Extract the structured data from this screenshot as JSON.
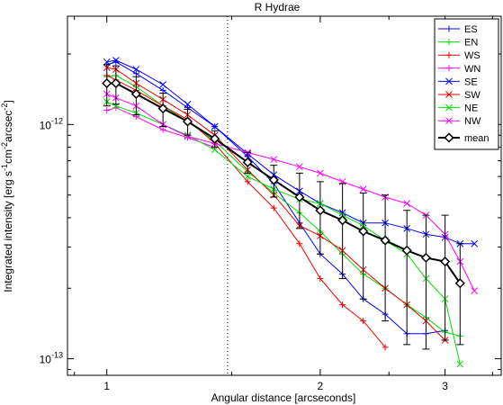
{
  "chart_data": {
    "type": "line",
    "title": "R Hydrae",
    "xlabel": "Angular distance [arcseconds]",
    "ylabel_main": "Integrated intensity [erg s",
    "ylabel_sup1": "-1",
    "ylabel_mid1": "cm",
    "ylabel_sup2": "-2",
    "ylabel_mid2": "arcsec",
    "ylabel_sup3": "-2",
    "ylabel_end": "]",
    "x_scale": "log",
    "y_scale": "log",
    "xlim": [
      0.88,
      3.6
    ],
    "ylim": [
      8.5e-14,
      2.9e-12
    ],
    "x_ticks": [
      {
        "value": 1,
        "label": "1"
      },
      {
        "value": 2,
        "label": "2"
      },
      {
        "value": 3,
        "label": "3"
      }
    ],
    "y_ticks": [
      {
        "value": 1e-13,
        "base": "10",
        "exp": "-13"
      },
      {
        "value": 1e-12,
        "base": "10",
        "exp": "-12"
      }
    ],
    "vline": {
      "x": 1.48,
      "style": "dotted"
    },
    "legend_position": "top-right",
    "series": [
      {
        "name": "ES",
        "color": "#0000ff",
        "marker": "plus",
        "x": [
          1.0,
          1.03,
          1.1,
          1.2,
          1.3,
          1.42,
          1.58,
          1.72,
          1.87,
          2.0,
          2.15,
          2.3,
          2.47,
          2.65,
          2.82,
          3.0
        ],
        "y": [
          1.8e-12,
          1.85e-12,
          1.65e-12,
          1.4e-12,
          1.18e-12,
          9.8e-13,
          7.3e-13,
          5.6e-13,
          3.8e-13,
          2.8e-13,
          2.3e-13,
          1.8e-13,
          1.55e-13,
          1.28e-13,
          1.28e-13,
          1.32e-13
        ]
      },
      {
        "name": "EN",
        "color": "#00dd00",
        "marker": "plus",
        "x": [
          1.0,
          1.03,
          1.1,
          1.2,
          1.3,
          1.42,
          1.58,
          1.72,
          1.87,
          2.0,
          2.15,
          2.3,
          2.47,
          2.65,
          2.82,
          3.0,
          3.15
        ],
        "y": [
          1.6e-12,
          1.62e-12,
          1.45e-12,
          1.2e-12,
          1.03e-12,
          8.5e-13,
          6.3e-13,
          5.1e-13,
          4.2e-13,
          3.5e-13,
          2.8e-13,
          2.3e-13,
          2e-13,
          1.7e-13,
          1.5e-13,
          1.3e-13,
          1.25e-13
        ]
      },
      {
        "name": "WS",
        "color": "#ee0000",
        "marker": "plus",
        "x": [
          1.0,
          1.03,
          1.1,
          1.2,
          1.3,
          1.42,
          1.58,
          1.72,
          1.87,
          2.0,
          2.15,
          2.3,
          2.47
        ],
        "y": [
          1.62e-12,
          1.55e-12,
          1.4e-12,
          1.2e-12,
          1.05e-12,
          8.3e-13,
          5.7e-13,
          4.4e-13,
          3.1e-13,
          2.2e-13,
          1.7e-13,
          1.45e-13,
          1.12e-13
        ]
      },
      {
        "name": "WN",
        "color": "#ff00ff",
        "marker": "plus",
        "x": [
          1.0,
          1.03,
          1.1,
          1.2,
          1.3,
          1.42
        ],
        "y": [
          1.15e-12,
          1.18e-12,
          1.08e-12,
          9.5e-13,
          8.8e-13,
          8e-13
        ]
      },
      {
        "name": "SE",
        "color": "#0000ff",
        "marker": "x",
        "x": [
          1.0,
          1.03,
          1.1,
          1.2,
          1.3,
          1.42,
          1.58,
          1.72,
          1.87,
          2.0,
          2.15,
          2.3,
          2.47,
          2.65,
          2.82,
          3.0,
          3.15,
          3.3
        ],
        "y": [
          1.85e-12,
          1.88e-12,
          1.72e-12,
          1.48e-12,
          1.22e-12,
          9.8e-13,
          7.5e-13,
          6.1e-13,
          5.2e-13,
          4.6e-13,
          4.2e-13,
          3.8e-13,
          3.8e-13,
          3.6e-13,
          3.4e-13,
          3.3e-13,
          3.1e-13,
          3.1e-13
        ]
      },
      {
        "name": "SW",
        "color": "#ee0000",
        "marker": "x",
        "x": [
          1.0,
          1.03,
          1.1,
          1.2,
          1.3,
          1.42,
          1.58,
          1.72,
          1.87,
          2.0,
          2.15,
          2.3,
          2.47,
          2.65,
          2.82,
          3.0
        ],
        "y": [
          1.75e-12,
          1.72e-12,
          1.5e-12,
          1.28e-12,
          1.1e-12,
          9e-13,
          6.4e-13,
          5e-13,
          3.7e-13,
          3.35e-13,
          2.9e-13,
          2.4e-13,
          2e-13,
          1.7e-13,
          1.45e-13,
          1.2e-13
        ]
      },
      {
        "name": "NE",
        "color": "#00dd00",
        "marker": "x",
        "x": [
          1.0,
          1.03,
          1.1,
          1.2,
          1.3,
          1.42,
          1.58,
          1.72,
          1.87,
          2.0,
          2.15,
          2.3,
          2.47,
          2.65,
          2.82,
          3.0,
          3.15
        ],
        "y": [
          1.25e-12,
          1.2e-12,
          1.12e-12,
          1e-12,
          9e-13,
          7.8e-13,
          6e-13,
          5.3e-13,
          4.8e-13,
          4.6e-13,
          4.1e-13,
          3.7e-13,
          3.2e-13,
          2.8e-13,
          2.2e-13,
          1.8e-13,
          9.5e-14
        ]
      },
      {
        "name": "NW",
        "color": "#ff00ff",
        "marker": "x",
        "x": [
          1.0,
          1.03,
          1.1,
          1.2,
          1.3,
          1.42,
          1.58,
          1.72,
          1.87,
          2.0,
          2.15,
          2.3,
          2.47,
          2.65,
          2.82,
          3.0,
          3.15,
          3.3
        ],
        "y": [
          1.35e-12,
          1.3e-12,
          1.2e-12,
          1e-12,
          8.9e-13,
          8.3e-13,
          7.6e-13,
          7.1e-13,
          6.6e-13,
          6.2e-13,
          5.7e-13,
          5.3e-13,
          4.9e-13,
          4.6e-13,
          4.1e-13,
          3.4e-13,
          2.6e-13,
          1.95e-13
        ]
      },
      {
        "name": "mean",
        "color": "#000000",
        "marker": "diamond",
        "width": 2,
        "x": [
          1.0,
          1.03,
          1.1,
          1.2,
          1.3,
          1.42,
          1.58,
          1.72,
          1.87,
          2.0,
          2.15,
          2.3,
          2.47,
          2.65,
          2.82,
          3.0,
          3.15
        ],
        "y": [
          1.5e-12,
          1.5e-12,
          1.35e-12,
          1.17e-12,
          1.03e-12,
          8.7e-13,
          6.9e-13,
          5.8e-13,
          4.9e-13,
          4.3e-13,
          3.9e-13,
          3.5e-13,
          3.2e-13,
          2.9e-13,
          2.7e-13,
          2.6e-13,
          2.1e-13
        ],
        "err_lo": [
          1.2e-12,
          1.22e-12,
          1.1e-12,
          9.8e-13,
          9e-13,
          8e-13,
          6.2e-13,
          4.9e-13,
          3.6e-13,
          2.8e-13,
          2.2e-13,
          1.8e-13,
          1.45e-13,
          1.15e-13,
          1.1e-13,
          1.2e-13,
          1.15e-13
        ],
        "err_hi": [
          1.8e-12,
          1.78e-12,
          1.6e-12,
          1.36e-12,
          1.16e-12,
          9.4e-13,
          7.6e-13,
          6.7e-13,
          6.2e-13,
          5.7e-13,
          5.6e-13,
          5.1e-13,
          5e-13,
          4.3e-13,
          4.1e-13,
          4.1e-13,
          3.1e-13
        ]
      }
    ]
  }
}
